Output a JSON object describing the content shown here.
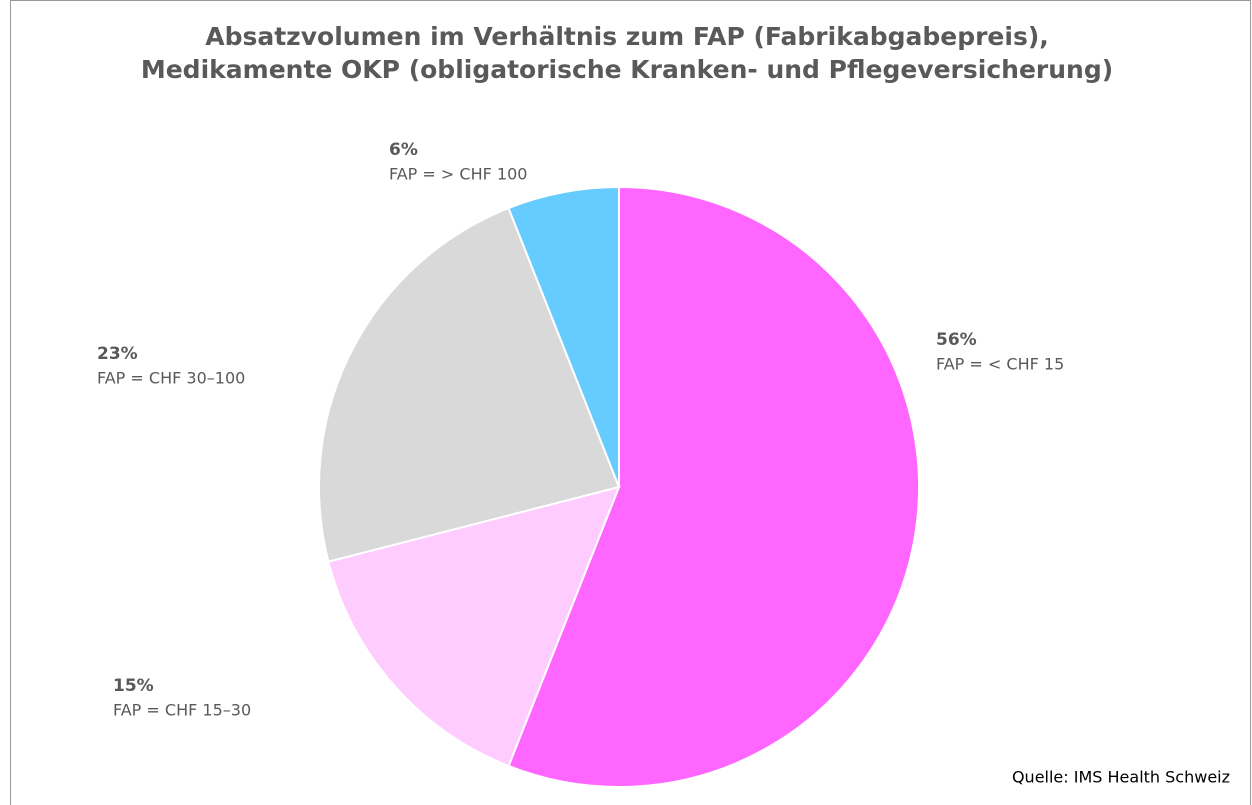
{
  "chart_data": {
    "type": "pie",
    "title": [
      "Absatzvolumen im Verhältnis zum FAP (Fabrikabgabepreis),",
      "Medikamente OKP (obligatorische Kranken- und Pflegeversicherung)"
    ],
    "categories": [
      "FAP = < CHF 15",
      "FAP = CHF 15–30",
      "FAP = CHF 30–100",
      "FAP = > CHF 100"
    ],
    "values": [
      56,
      15,
      23,
      6
    ],
    "value_labels": [
      "56%",
      "15%",
      "23%",
      "6%"
    ],
    "colors": [
      "#ff66ff",
      "#ffccff",
      "#d9d9d9",
      "#66ccff"
    ],
    "source": "Quelle: IMS Health Schweiz"
  }
}
